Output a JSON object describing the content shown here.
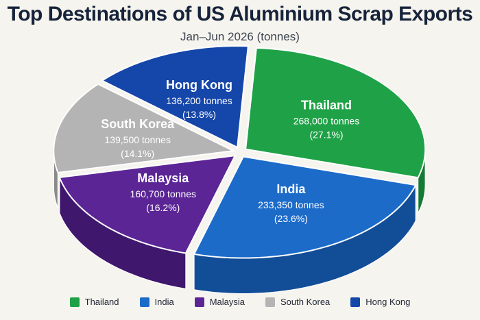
{
  "chart_data": {
    "type": "pie",
    "title": "Top Destinations of US Aluminium Scrap Exports",
    "subtitle": "Jan–Jun 2026 (tonnes)",
    "slices": [
      {
        "label": "Thailand",
        "value": 268000,
        "value_text": "268,000 tonnes",
        "pct_text": "(27.1%)",
        "color": "#1fa247",
        "side_color": "#157a34"
      },
      {
        "label": "India",
        "value": 233350,
        "value_text": "233,350 tonnes",
        "pct_text": "(23.6%)",
        "color": "#1c6bc9",
        "side_color": "#124e97"
      },
      {
        "label": "Malaysia",
        "value": 160700,
        "value_text": "160,700 tonnes",
        "pct_text": "(16.2%)",
        "color": "#5b2596",
        "side_color": "#3f176c"
      },
      {
        "label": "South Korea",
        "value": 139500,
        "value_text": "139,500 tonnes",
        "pct_text": "(14.1%)",
        "color": "#b4b4b4",
        "side_color": "#8a8a8a"
      },
      {
        "label": "Hong Kong",
        "value": 136200,
        "value_text": "136,200 tonnes",
        "pct_text": "(13.8%)",
        "color": "#1546a9",
        "side_color": "#0e3179"
      }
    ],
    "legend": {
      "position": "bottom",
      "items": [
        "Thailand",
        "India",
        "Malaysia",
        "South Korea",
        "Hong Kong"
      ]
    }
  }
}
